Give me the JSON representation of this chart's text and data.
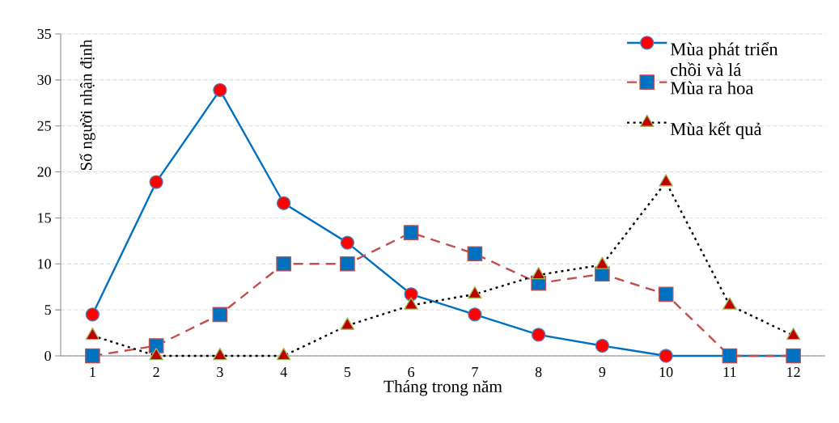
{
  "chart_data": {
    "type": "line",
    "xlabel": "Tháng trong năm",
    "ylabel": "Số người nhận định",
    "categories": [
      "1",
      "2",
      "3",
      "4",
      "5",
      "6",
      "7",
      "8",
      "9",
      "10",
      "11",
      "12"
    ],
    "series": [
      {
        "name": "Mùa phát triển chồi và lá",
        "color": "#0070c0",
        "marker": "circle",
        "line_style": "solid",
        "values": [
          4.5,
          18.9,
          28.9,
          16.6,
          12.3,
          6.7,
          4.5,
          2.3,
          1.1,
          0,
          0,
          0
        ]
      },
      {
        "name": "Mùa ra hoa",
        "color": "#c0504d",
        "marker": "square",
        "line_style": "dashed",
        "values": [
          0,
          1.1,
          4.5,
          10,
          10,
          13.4,
          11.1,
          7.9,
          8.9,
          6.7,
          0,
          0
        ]
      },
      {
        "name": "Mùa kết quả",
        "color": "#000000",
        "marker": "triangle",
        "line_style": "dotted",
        "values": [
          2.2,
          0,
          0,
          0,
          3.3,
          5.5,
          6.7,
          8.8,
          9.9,
          18.9,
          5.5,
          2.2
        ]
      }
    ],
    "ylim": [
      0,
      35
    ],
    "yticks": [
      0,
      5,
      10,
      15,
      20,
      25,
      30,
      35
    ],
    "grid": "y",
    "legend": "top right"
  }
}
